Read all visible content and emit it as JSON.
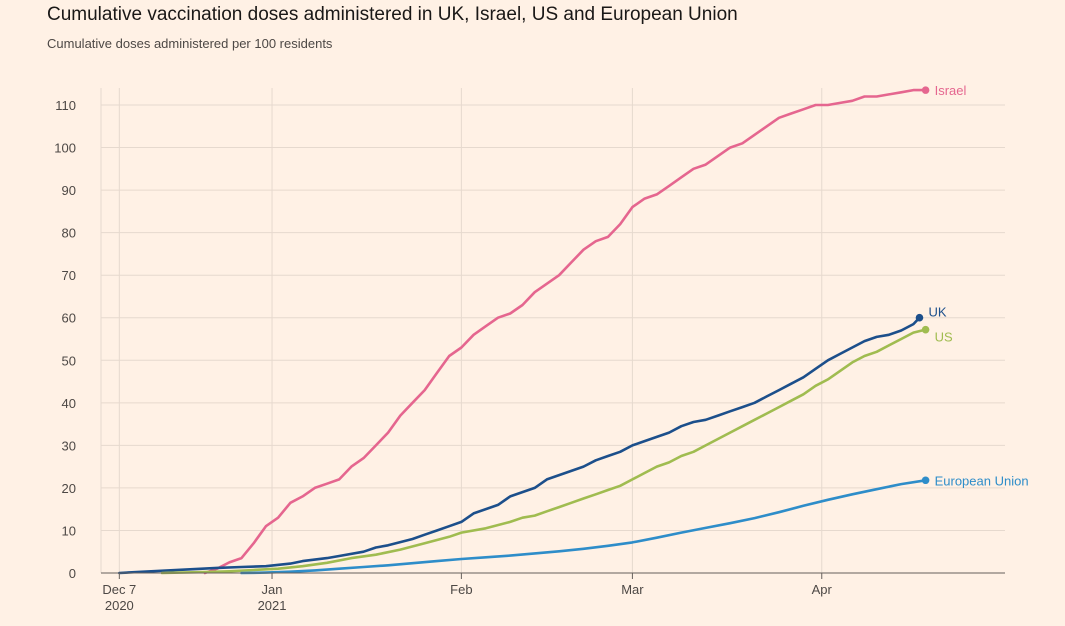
{
  "chart_data": {
    "type": "line",
    "title": "Cumulative vaccination doses administered in UK, Israel, US and European Union",
    "subtitle": "Cumulative doses administered per 100 residents",
    "xlabel": "",
    "ylabel": "",
    "ylim": [
      0,
      114
    ],
    "yticks": [
      0,
      10,
      20,
      30,
      40,
      50,
      60,
      70,
      80,
      90,
      100,
      110
    ],
    "xlim_days": [
      -3,
      145
    ],
    "xticks": [
      {
        "day": 0,
        "line1": "Dec 7",
        "line2": "2020"
      },
      {
        "day": 25,
        "line1": "Jan",
        "line2": "2021"
      },
      {
        "day": 56,
        "line1": "Feb",
        "line2": ""
      },
      {
        "day": 84,
        "line1": "Mar",
        "line2": ""
      },
      {
        "day": 115,
        "line1": "Apr",
        "line2": ""
      }
    ],
    "x_unit": "days since 2020-12-07",
    "grid": true,
    "series": [
      {
        "name": "Israel",
        "color": "#e5668f",
        "points": [
          [
            14,
            0
          ],
          [
            16,
            1
          ],
          [
            18,
            2.5
          ],
          [
            20,
            3.5
          ],
          [
            22,
            7
          ],
          [
            24,
            11
          ],
          [
            26,
            13
          ],
          [
            28,
            16.5
          ],
          [
            30,
            18
          ],
          [
            32,
            20
          ],
          [
            34,
            21
          ],
          [
            36,
            22
          ],
          [
            38,
            25
          ],
          [
            40,
            27
          ],
          [
            42,
            30
          ],
          [
            44,
            33
          ],
          [
            46,
            37
          ],
          [
            48,
            40
          ],
          [
            50,
            43
          ],
          [
            52,
            47
          ],
          [
            54,
            51
          ],
          [
            56,
            53
          ],
          [
            58,
            56
          ],
          [
            60,
            58
          ],
          [
            62,
            60
          ],
          [
            64,
            61
          ],
          [
            66,
            63
          ],
          [
            68,
            66
          ],
          [
            70,
            68
          ],
          [
            72,
            70
          ],
          [
            74,
            73
          ],
          [
            76,
            76
          ],
          [
            78,
            78
          ],
          [
            80,
            79
          ],
          [
            82,
            82
          ],
          [
            84,
            86
          ],
          [
            86,
            88
          ],
          [
            88,
            89
          ],
          [
            90,
            91
          ],
          [
            92,
            93
          ],
          [
            94,
            95
          ],
          [
            96,
            96
          ],
          [
            98,
            98
          ],
          [
            100,
            100
          ],
          [
            102,
            101
          ],
          [
            104,
            103
          ],
          [
            106,
            105
          ],
          [
            108,
            107
          ],
          [
            110,
            108
          ],
          [
            112,
            109
          ],
          [
            114,
            110
          ],
          [
            116,
            110
          ],
          [
            118,
            110.5
          ],
          [
            120,
            111
          ],
          [
            122,
            112
          ],
          [
            124,
            112
          ],
          [
            126,
            112.5
          ],
          [
            128,
            113
          ],
          [
            130,
            113.5
          ],
          [
            132,
            113.5
          ]
        ]
      },
      {
        "name": "UK",
        "color": "#1c4f8b",
        "points": [
          [
            0,
            0
          ],
          [
            4,
            0.3
          ],
          [
            8,
            0.6
          ],
          [
            12,
            0.9
          ],
          [
            16,
            1.2
          ],
          [
            20,
            1.4
          ],
          [
            24,
            1.6
          ],
          [
            28,
            2.2
          ],
          [
            30,
            2.8
          ],
          [
            34,
            3.5
          ],
          [
            36,
            4
          ],
          [
            40,
            5
          ],
          [
            42,
            6
          ],
          [
            44,
            6.5
          ],
          [
            48,
            8
          ],
          [
            50,
            9
          ],
          [
            52,
            10
          ],
          [
            54,
            11
          ],
          [
            56,
            12
          ],
          [
            58,
            14
          ],
          [
            62,
            16
          ],
          [
            64,
            18
          ],
          [
            68,
            20
          ],
          [
            70,
            22
          ],
          [
            72,
            23
          ],
          [
            74,
            24
          ],
          [
            76,
            25
          ],
          [
            78,
            26.5
          ],
          [
            80,
            27.5
          ],
          [
            82,
            28.5
          ],
          [
            84,
            30
          ],
          [
            86,
            31
          ],
          [
            88,
            32
          ],
          [
            90,
            33
          ],
          [
            92,
            34.5
          ],
          [
            94,
            35.5
          ],
          [
            96,
            36
          ],
          [
            98,
            37
          ],
          [
            100,
            38
          ],
          [
            102,
            39
          ],
          [
            104,
            40
          ],
          [
            106,
            41.5
          ],
          [
            108,
            43
          ],
          [
            110,
            44.5
          ],
          [
            112,
            46
          ],
          [
            114,
            48
          ],
          [
            116,
            50
          ],
          [
            118,
            51.5
          ],
          [
            120,
            53
          ],
          [
            122,
            54.5
          ],
          [
            124,
            55.5
          ],
          [
            126,
            56
          ],
          [
            128,
            57
          ],
          [
            130,
            58.5
          ],
          [
            131,
            60
          ]
        ]
      },
      {
        "name": "US",
        "color": "#a0bc50",
        "points": [
          [
            7,
            0
          ],
          [
            10,
            0.1
          ],
          [
            14,
            0.2
          ],
          [
            18,
            0.4
          ],
          [
            22,
            0.7
          ],
          [
            26,
            1
          ],
          [
            30,
            1.6
          ],
          [
            34,
            2.4
          ],
          [
            38,
            3.5
          ],
          [
            42,
            4.3
          ],
          [
            46,
            5.5
          ],
          [
            50,
            7
          ],
          [
            54,
            8.5
          ],
          [
            56,
            9.5
          ],
          [
            60,
            10.5
          ],
          [
            64,
            12
          ],
          [
            66,
            13
          ],
          [
            68,
            13.5
          ],
          [
            70,
            14.5
          ],
          [
            72,
            15.5
          ],
          [
            74,
            16.5
          ],
          [
            76,
            17.5
          ],
          [
            78,
            18.5
          ],
          [
            80,
            19.5
          ],
          [
            82,
            20.5
          ],
          [
            84,
            22
          ],
          [
            86,
            23.5
          ],
          [
            88,
            25
          ],
          [
            90,
            26
          ],
          [
            92,
            27.5
          ],
          [
            94,
            28.5
          ],
          [
            96,
            30
          ],
          [
            98,
            31.5
          ],
          [
            100,
            33
          ],
          [
            102,
            34.5
          ],
          [
            104,
            36
          ],
          [
            106,
            37.5
          ],
          [
            108,
            39
          ],
          [
            110,
            40.5
          ],
          [
            112,
            42
          ],
          [
            114,
            44
          ],
          [
            116,
            45.5
          ],
          [
            118,
            47.5
          ],
          [
            120,
            49.5
          ],
          [
            122,
            51
          ],
          [
            124,
            52
          ],
          [
            126,
            53.5
          ],
          [
            128,
            55
          ],
          [
            130,
            56.5
          ],
          [
            132,
            57.2
          ]
        ]
      },
      {
        "name": "European Union",
        "color": "#2e8dc9",
        "points": [
          [
            20,
            0
          ],
          [
            24,
            0.1
          ],
          [
            28,
            0.3
          ],
          [
            32,
            0.6
          ],
          [
            36,
            1
          ],
          [
            40,
            1.4
          ],
          [
            44,
            1.8
          ],
          [
            48,
            2.3
          ],
          [
            52,
            2.8
          ],
          [
            56,
            3.3
          ],
          [
            60,
            3.7
          ],
          [
            64,
            4.1
          ],
          [
            68,
            4.6
          ],
          [
            72,
            5.1
          ],
          [
            76,
            5.7
          ],
          [
            80,
            6.4
          ],
          [
            84,
            7.2
          ],
          [
            88,
            8.3
          ],
          [
            92,
            9.5
          ],
          [
            96,
            10.6
          ],
          [
            100,
            11.7
          ],
          [
            104,
            12.9
          ],
          [
            108,
            14.3
          ],
          [
            112,
            15.8
          ],
          [
            116,
            17.2
          ],
          [
            120,
            18.5
          ],
          [
            124,
            19.7
          ],
          [
            128,
            20.9
          ],
          [
            132,
            21.8
          ]
        ]
      }
    ]
  }
}
